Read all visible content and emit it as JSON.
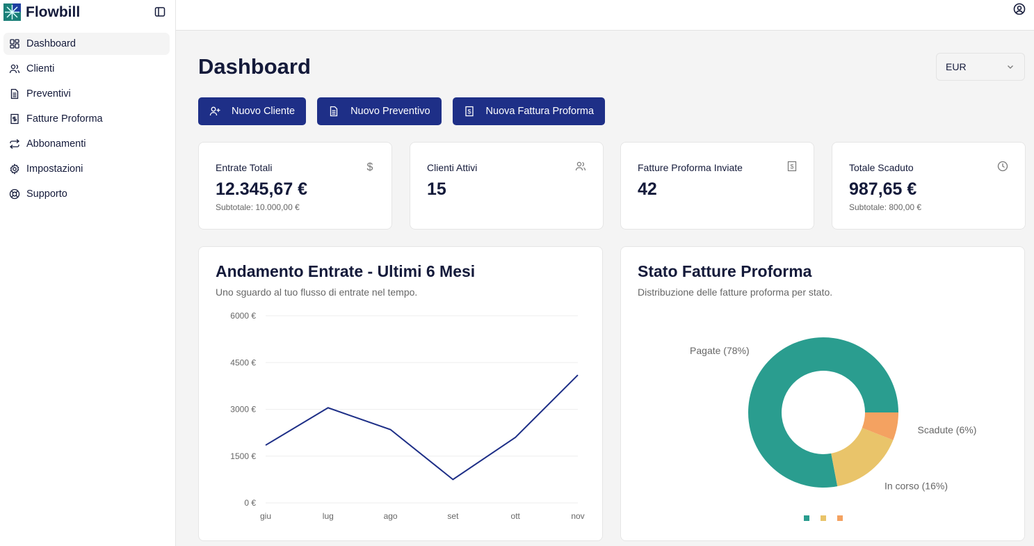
{
  "app": {
    "name": "Flowbill"
  },
  "sidebar": {
    "items": [
      {
        "label": "Dashboard",
        "icon": "dashboard-icon",
        "active": true
      },
      {
        "label": "Clienti",
        "icon": "users-icon"
      },
      {
        "label": "Preventivi",
        "icon": "file-text-icon"
      },
      {
        "label": "Fatture Proforma",
        "icon": "receipt-icon"
      },
      {
        "label": "Abbonamenti",
        "icon": "repeat-icon"
      },
      {
        "label": "Impostazioni",
        "icon": "gear-icon"
      },
      {
        "label": "Supporto",
        "icon": "life-buoy-icon"
      }
    ]
  },
  "page": {
    "title": "Dashboard",
    "currency": "EUR"
  },
  "actions": [
    {
      "label": "Nuovo Cliente"
    },
    {
      "label": "Nuovo Preventivo"
    },
    {
      "label": "Nuova Fattura Proforma"
    }
  ],
  "stats": [
    {
      "label": "Entrate Totali",
      "value": "12.345,67 €",
      "sub": "Subtotale: 10.000,00 €"
    },
    {
      "label": "Clienti Attivi",
      "value": "15"
    },
    {
      "label": "Fatture Proforma Inviate",
      "value": "42"
    },
    {
      "label": "Totale Scaduto",
      "value": "987,65 €",
      "sub": "Subtotale: 800,00 €"
    }
  ],
  "colors": {
    "primary": "#1e2f87",
    "paid": "#2a9d8f",
    "progress": "#e9c46a",
    "overdue": "#f4a261"
  },
  "chart_data": [
    {
      "type": "line",
      "title": "Andamento Entrate - Ultimi 6 Mesi",
      "subtitle": "Uno sguardo al tuo flusso di entrate nel tempo.",
      "categories": [
        "giu",
        "lug",
        "ago",
        "set",
        "ott",
        "nov"
      ],
      "values": [
        1850,
        3050,
        2350,
        750,
        2100,
        4100
      ],
      "yticks": [
        "0 €",
        "1500 €",
        "3000 €",
        "4500 €",
        "6000 €"
      ],
      "ylim": [
        0,
        6000
      ],
      "grid": true,
      "color": "#1e2f87"
    },
    {
      "type": "pie",
      "title": "Stato Fatture Proforma",
      "subtitle": "Distribuzione delle fatture proforma per stato.",
      "slices": [
        {
          "label": "Pagate (78%)",
          "value": 78,
          "color": "#2a9d8f"
        },
        {
          "label": "In corso (16%)",
          "value": 16,
          "color": "#e9c46a"
        },
        {
          "label": "Scadute (6%)",
          "value": 6,
          "color": "#f4a261"
        }
      ],
      "donut": true,
      "legend": "bottom"
    }
  ]
}
